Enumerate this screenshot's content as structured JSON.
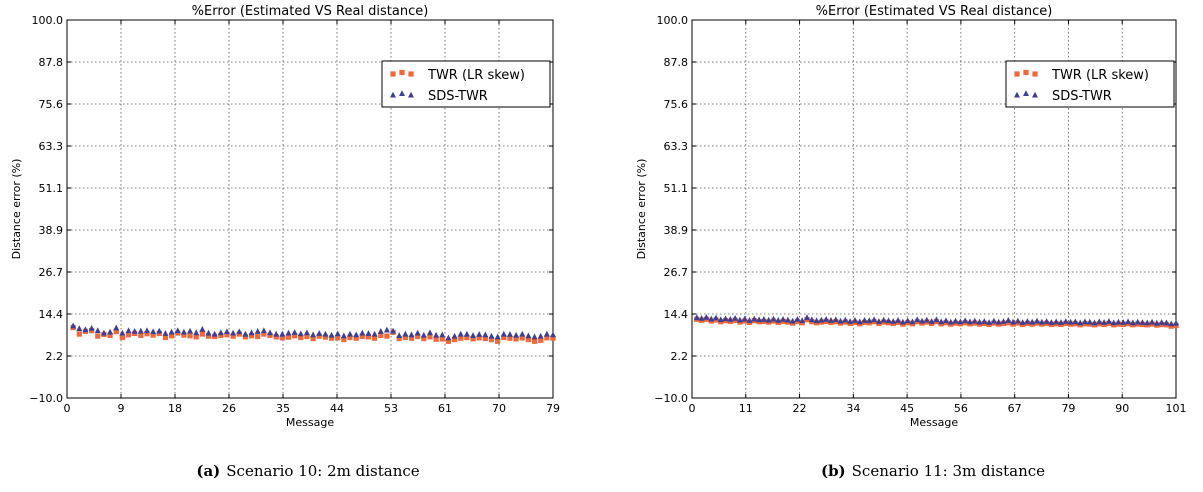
{
  "chart_data": [
    {
      "type": "scatter",
      "title": "%Error (Estimated VS Real distance)",
      "xlabel": "Message",
      "ylabel": "Distance error (%)",
      "xlim": [
        0,
        79
      ],
      "ylim": [
        -10.0,
        100.0
      ],
      "x_ticks": [
        "0",
        "9",
        "18",
        "26",
        "35",
        "44",
        "53",
        "61",
        "70",
        "79"
      ],
      "y_ticks": [
        "−10.0",
        "2.2",
        "14.4",
        "26.7",
        "38.9",
        "51.1",
        "63.3",
        "75.6",
        "87.8",
        "100.0"
      ],
      "grid": true,
      "legend": "top-right",
      "series": [
        {
          "name": "TWR (LR skew)",
          "color": "#ee6a3c",
          "marker": "square",
          "x": [
            1,
            2,
            3,
            4,
            5,
            6,
            7,
            8,
            9,
            10,
            11,
            12,
            13,
            14,
            15,
            16,
            17,
            18,
            19,
            20,
            21,
            22,
            23,
            24,
            25,
            26,
            27,
            28,
            29,
            30,
            31,
            32,
            33,
            34,
            35,
            36,
            37,
            38,
            39,
            40,
            41,
            42,
            43,
            44,
            45,
            46,
            47,
            48,
            49,
            50,
            51,
            52,
            53,
            54,
            55,
            56,
            57,
            58,
            59,
            60,
            61,
            62,
            63,
            64,
            65,
            66,
            67,
            68,
            69,
            70,
            71,
            72,
            73,
            74,
            75,
            76,
            77,
            78,
            79
          ],
          "y": [
            10.5,
            8.6,
            9.4,
            9.6,
            8.0,
            8.5,
            8.2,
            9.3,
            7.6,
            8.4,
            8.8,
            8.2,
            8.7,
            8.3,
            8.8,
            7.6,
            8.1,
            8.9,
            8.3,
            8.1,
            7.8,
            8.6,
            8.0,
            7.9,
            8.2,
            8.4,
            8.0,
            8.6,
            7.8,
            8.1,
            7.9,
            8.6,
            8.2,
            7.8,
            7.5,
            7.7,
            8.1,
            7.6,
            7.9,
            7.3,
            8.0,
            7.7,
            7.4,
            7.5,
            7.0,
            7.6,
            7.4,
            7.9,
            7.8,
            7.4,
            8.2,
            8.0,
            9.1,
            7.3,
            7.6,
            7.4,
            7.9,
            7.3,
            7.8,
            7.1,
            7.2,
            6.5,
            7.0,
            7.4,
            7.6,
            7.2,
            7.5,
            7.3,
            7.0,
            6.5,
            7.6,
            7.4,
            7.2,
            7.5,
            7.0,
            6.5,
            6.8,
            7.5,
            7.4
          ]
        },
        {
          "name": "SDS-TWR",
          "color": "#3f3f91",
          "marker": "triangle",
          "x": [
            1,
            2,
            3,
            4,
            5,
            6,
            7,
            8,
            9,
            10,
            11,
            12,
            13,
            14,
            15,
            16,
            17,
            18,
            19,
            20,
            21,
            22,
            23,
            24,
            25,
            26,
            27,
            28,
            29,
            30,
            31,
            32,
            33,
            34,
            35,
            36,
            37,
            38,
            39,
            40,
            41,
            42,
            43,
            44,
            45,
            46,
            47,
            48,
            49,
            50,
            51,
            52,
            53,
            54,
            55,
            56,
            57,
            58,
            59,
            60,
            61,
            62,
            63,
            64,
            65,
            66,
            67,
            68,
            69,
            70,
            71,
            72,
            73,
            74,
            75,
            76,
            77,
            78,
            79
          ],
          "y": [
            11.0,
            10.2,
            9.9,
            10.3,
            9.6,
            8.9,
            9.2,
            10.4,
            8.9,
            9.6,
            9.4,
            9.5,
            9.6,
            9.3,
            9.5,
            8.8,
            9.2,
            9.6,
            9.2,
            9.5,
            9.0,
            10.0,
            8.9,
            8.6,
            9.0,
            9.3,
            8.9,
            9.3,
            8.6,
            9.0,
            9.4,
            9.6,
            9.0,
            8.6,
            8.6,
            8.9,
            9.1,
            8.7,
            9.0,
            8.4,
            8.8,
            8.6,
            8.3,
            8.7,
            8.1,
            8.6,
            8.4,
            8.9,
            8.8,
            8.6,
            9.4,
            9.8,
            9.5,
            8.2,
            8.6,
            8.4,
            8.9,
            8.3,
            9.0,
            8.3,
            8.4,
            7.5,
            8.0,
            8.6,
            8.6,
            8.2,
            8.5,
            8.4,
            8.0,
            7.8,
            8.6,
            8.5,
            8.3,
            8.6,
            8.1,
            7.8,
            8.0,
            8.6,
            8.4
          ]
        }
      ]
    },
    {
      "type": "scatter",
      "title": "%Error (Estimated VS Real distance)",
      "xlabel": "Message",
      "ylabel": "Distance error (%)",
      "xlim": [
        0,
        101
      ],
      "ylim": [
        -10.0,
        100.0
      ],
      "x_ticks": [
        "0",
        "11",
        "22",
        "34",
        "45",
        "56",
        "67",
        "79",
        "90",
        "101"
      ],
      "y_ticks": [
        "−10.0",
        "2.2",
        "14.4",
        "26.7",
        "38.9",
        "51.1",
        "63.3",
        "75.6",
        "87.8",
        "100.0"
      ],
      "grid": true,
      "legend": "top-right",
      "series": [
        {
          "name": "TWR (LR skew)",
          "color": "#ee6a3c",
          "marker": "square",
          "x": [
            1,
            2,
            3,
            4,
            5,
            6,
            7,
            8,
            9,
            10,
            11,
            12,
            13,
            14,
            15,
            16,
            17,
            18,
            19,
            20,
            21,
            22,
            23,
            24,
            25,
            26,
            27,
            28,
            29,
            30,
            31,
            32,
            33,
            34,
            35,
            36,
            37,
            38,
            39,
            40,
            41,
            42,
            43,
            44,
            45,
            46,
            47,
            48,
            49,
            50,
            51,
            52,
            53,
            54,
            55,
            56,
            57,
            58,
            59,
            60,
            61,
            62,
            63,
            64,
            65,
            66,
            67,
            68,
            69,
            70,
            71,
            72,
            73,
            74,
            75,
            76,
            77,
            78,
            79,
            80,
            81,
            82,
            83,
            84,
            85,
            86,
            87,
            88,
            89,
            90,
            91,
            92,
            93,
            94,
            95,
            96,
            97,
            98,
            99,
            100,
            101
          ],
          "y": [
            12.9,
            12.6,
            12.9,
            12.4,
            12.7,
            12.2,
            12.5,
            12.3,
            12.6,
            12.1,
            12.4,
            12.0,
            12.5,
            12.2,
            12.3,
            12.1,
            12.4,
            12.0,
            12.3,
            12.1,
            11.8,
            12.3,
            11.9,
            12.8,
            12.2,
            11.9,
            12.1,
            12.3,
            12.0,
            12.2,
            11.8,
            12.1,
            11.7,
            12.0,
            11.6,
            12.0,
            11.9,
            12.2,
            11.7,
            12.1,
            11.9,
            11.7,
            12.0,
            11.5,
            11.9,
            11.6,
            12.2,
            11.8,
            12.1,
            11.7,
            12.2,
            11.6,
            11.9,
            11.5,
            11.8,
            11.6,
            11.9,
            11.6,
            11.8,
            11.5,
            11.7,
            11.4,
            11.8,
            11.5,
            11.7,
            11.9,
            11.5,
            11.8,
            11.4,
            11.7,
            11.5,
            11.8,
            11.5,
            11.7,
            11.4,
            11.6,
            11.4,
            11.7,
            11.5,
            11.6,
            11.3,
            11.6,
            11.5,
            11.3,
            11.6,
            11.4,
            11.7,
            11.3,
            11.5,
            11.4,
            11.6,
            11.3,
            11.5,
            11.4,
            11.3,
            11.5,
            11.2,
            11.4,
            11.3,
            10.9,
            11.1
          ]
        },
        {
          "name": "SDS-TWR",
          "color": "#3f3f91",
          "marker": "triangle",
          "x": [
            1,
            2,
            3,
            4,
            5,
            6,
            7,
            8,
            9,
            10,
            11,
            12,
            13,
            14,
            15,
            16,
            17,
            18,
            19,
            20,
            21,
            22,
            23,
            24,
            25,
            26,
            27,
            28,
            29,
            30,
            31,
            32,
            33,
            34,
            35,
            36,
            37,
            38,
            39,
            40,
            41,
            42,
            43,
            44,
            45,
            46,
            47,
            48,
            49,
            50,
            51,
            52,
            53,
            54,
            55,
            56,
            57,
            58,
            59,
            60,
            61,
            62,
            63,
            64,
            65,
            66,
            67,
            68,
            69,
            70,
            71,
            72,
            73,
            74,
            75,
            76,
            77,
            78,
            79,
            80,
            81,
            82,
            83,
            84,
            85,
            86,
            87,
            88,
            89,
            90,
            91,
            92,
            93,
            94,
            95,
            96,
            97,
            98,
            99,
            100,
            101
          ],
          "y": [
            13.4,
            13.2,
            13.5,
            13.0,
            13.3,
            12.8,
            13.1,
            12.9,
            13.2,
            12.7,
            13.0,
            12.6,
            13.0,
            12.8,
            12.9,
            12.7,
            13.0,
            12.6,
            12.9,
            12.7,
            12.4,
            12.9,
            12.5,
            13.4,
            12.8,
            12.5,
            12.7,
            12.9,
            12.6,
            12.8,
            12.4,
            12.7,
            12.3,
            12.6,
            12.2,
            12.6,
            12.5,
            12.8,
            12.3,
            12.7,
            12.5,
            12.3,
            12.6,
            12.1,
            12.5,
            12.2,
            12.8,
            12.4,
            12.7,
            12.3,
            12.8,
            12.2,
            12.5,
            12.1,
            12.4,
            12.2,
            12.5,
            12.2,
            12.4,
            12.1,
            12.3,
            12.0,
            12.4,
            12.1,
            12.3,
            12.6,
            12.1,
            12.4,
            12.0,
            12.3,
            12.1,
            12.4,
            12.1,
            12.3,
            12.0,
            12.2,
            12.0,
            12.3,
            12.1,
            12.2,
            11.9,
            12.2,
            12.1,
            11.9,
            12.2,
            12.0,
            12.3,
            11.9,
            12.1,
            12.0,
            12.2,
            11.9,
            12.1,
            12.0,
            11.9,
            12.1,
            11.8,
            12.0,
            11.9,
            11.6,
            11.8
          ]
        }
      ]
    }
  ],
  "captions": [
    {
      "label": "(a)",
      "text": "Scenario 10: 2m distance"
    },
    {
      "label": "(b)",
      "text": "Scenario 11: 3m distance"
    }
  ]
}
